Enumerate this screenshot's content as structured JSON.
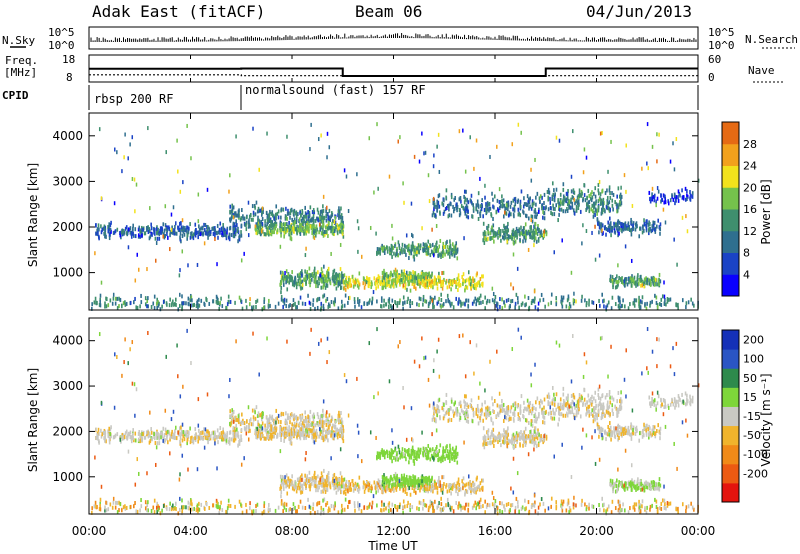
{
  "header": {
    "station": "Adak East (fitACF)",
    "beam": "Beam 06",
    "date": "04/Jun/2013"
  },
  "top_panels": {
    "nsky_label": "N.Sky",
    "nsearch_label": "N.Search",
    "freq_label": "Freq.",
    "freq_unit": "[MHz]",
    "nave_label": "Nave",
    "cpid_label": "CPID",
    "nsky_ticks": [
      "10^5",
      "10^0"
    ],
    "freq_ticks": [
      "18",
      "8"
    ],
    "nave_ticks": [
      "60",
      "0"
    ],
    "cpid_segments": [
      "rbsp 200 RF",
      "normalsound (fast) 157 RF"
    ]
  },
  "chart_data": [
    {
      "type": "line",
      "title": "",
      "xlabel": "Time UT",
      "x_ticks": [
        "00:00",
        "04:00",
        "08:00",
        "12:00",
        "16:00",
        "20:00",
        "00:00"
      ],
      "series": [
        {
          "name": "Freq.",
          "x": [
            0,
            6,
            6,
            10,
            10,
            18,
            18,
            24
          ],
          "values": [
            12.9,
            12.9,
            13.0,
            13.0,
            10.2,
            10.2,
            13.0,
            13.0
          ]
        },
        {
          "name": "Nave",
          "x": [
            0,
            6,
            6,
            10,
            10,
            18,
            18,
            24
          ],
          "values": [
            16,
            16,
            14,
            14,
            14,
            14,
            14,
            14
          ]
        }
      ]
    },
    {
      "type": "heatmap",
      "title": "",
      "xlabel": "",
      "ylabel": "Slant Range [km]",
      "xlim": [
        0,
        24
      ],
      "ylim": [
        180,
        4500
      ],
      "y_ticks": [
        "1000",
        "2000",
        "3000",
        "4000"
      ],
      "colorbar": {
        "label": "Power [dB]",
        "ticks": [
          "4",
          "8",
          "12",
          "16",
          "20",
          "24",
          "28"
        ]
      }
    },
    {
      "type": "heatmap",
      "title": "",
      "xlabel": "Time UT",
      "ylabel": "Slant Range [km]",
      "xlim": [
        0,
        24
      ],
      "ylim": [
        180,
        4500
      ],
      "y_ticks": [
        "1000",
        "2000",
        "3000",
        "4000"
      ],
      "colorbar": {
        "label": "Velocity [m s⁻¹]",
        "ticks": [
          "200",
          "100",
          "50",
          "15",
          "-15",
          "-50",
          "-100",
          "-200"
        ]
      }
    }
  ]
}
